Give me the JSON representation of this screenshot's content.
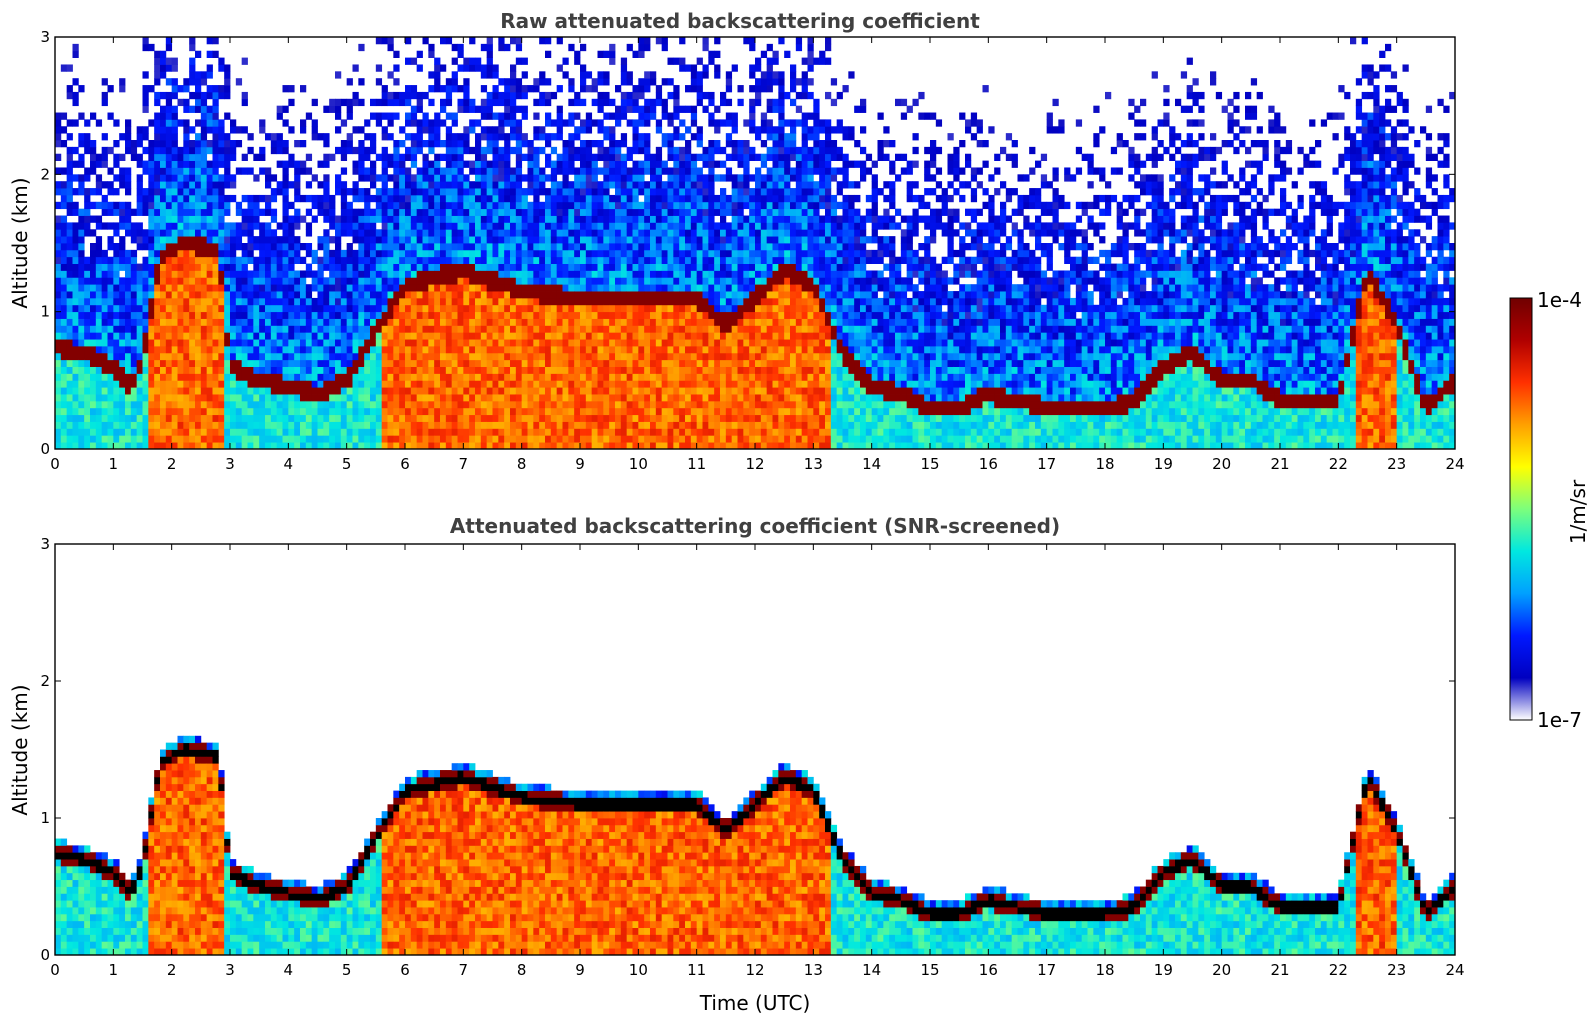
{
  "colormap": [
    "#ffffff",
    "#0000c0",
    "#0018ff",
    "#00a0ff",
    "#00e8e0",
    "#7cff7c",
    "#ffff00",
    "#ffa000",
    "#ff3000",
    "#b00000",
    "#700000"
  ],
  "chart_data": [
    {
      "id": "panel-1",
      "type": "heatmap",
      "title": "Raw attenuated backscattering coefficient",
      "xlabel": "",
      "ylabel": "Altitude (km)",
      "xlim": [
        0,
        24
      ],
      "ylim": [
        0,
        3
      ],
      "xticks": [
        "0",
        "1",
        "2",
        "3",
        "4",
        "5",
        "6",
        "7",
        "8",
        "9",
        "10",
        "11",
        "12",
        "13",
        "14",
        "15",
        "16",
        "17",
        "18",
        "19",
        "20",
        "21",
        "22",
        "23",
        "24"
      ],
      "yticks": [
        "0",
        "1",
        "2",
        "3"
      ],
      "screened": false,
      "cloud_base_km": [
        [
          0.0,
          0.75
        ],
        [
          0.5,
          0.7
        ],
        [
          1.0,
          0.6
        ],
        [
          1.3,
          0.45
        ],
        [
          1.5,
          0.65
        ],
        [
          1.8,
          1.4
        ],
        [
          2.2,
          1.5
        ],
        [
          2.8,
          1.45
        ],
        [
          3.0,
          0.6
        ],
        [
          3.5,
          0.5
        ],
        [
          4.0,
          0.45
        ],
        [
          4.5,
          0.4
        ],
        [
          5.0,
          0.5
        ],
        [
          6.0,
          1.2
        ],
        [
          7.0,
          1.3
        ],
        [
          8.0,
          1.15
        ],
        [
          9.0,
          1.1
        ],
        [
          10.0,
          1.1
        ],
        [
          11.0,
          1.1
        ],
        [
          11.5,
          0.9
        ],
        [
          12.0,
          1.1
        ],
        [
          12.5,
          1.3
        ],
        [
          13.0,
          1.2
        ],
        [
          13.5,
          0.7
        ],
        [
          14.0,
          0.45
        ],
        [
          14.5,
          0.4
        ],
        [
          15.0,
          0.3
        ],
        [
          15.5,
          0.3
        ],
        [
          16.0,
          0.4
        ],
        [
          16.5,
          0.35
        ],
        [
          17.0,
          0.3
        ],
        [
          18.0,
          0.3
        ],
        [
          18.5,
          0.35
        ],
        [
          19.0,
          0.6
        ],
        [
          19.5,
          0.7
        ],
        [
          20.0,
          0.5
        ],
        [
          20.5,
          0.5
        ],
        [
          21.0,
          0.35
        ],
        [
          22.0,
          0.35
        ],
        [
          22.5,
          1.3
        ],
        [
          23.0,
          0.9
        ],
        [
          23.5,
          0.3
        ],
        [
          24.0,
          0.5
        ]
      ]
    },
    {
      "id": "panel-2",
      "type": "heatmap",
      "title": "Attenuated backscattering coefficient (SNR-screened)",
      "xlabel": "Time (UTC)",
      "ylabel": "Altitude (km)",
      "xlim": [
        0,
        24
      ],
      "ylim": [
        0,
        3
      ],
      "xticks": [
        "0",
        "1",
        "2",
        "3",
        "4",
        "5",
        "6",
        "7",
        "8",
        "9",
        "10",
        "11",
        "12",
        "13",
        "14",
        "15",
        "16",
        "17",
        "18",
        "19",
        "20",
        "21",
        "22",
        "23",
        "24"
      ],
      "yticks": [
        "0",
        "1",
        "2",
        "3"
      ],
      "screened": true,
      "cloud_base_km": [
        [
          0.0,
          0.75
        ],
        [
          0.5,
          0.7
        ],
        [
          1.0,
          0.6
        ],
        [
          1.3,
          0.45
        ],
        [
          1.5,
          0.65
        ],
        [
          1.8,
          1.4
        ],
        [
          2.2,
          1.5
        ],
        [
          2.8,
          1.45
        ],
        [
          3.0,
          0.6
        ],
        [
          3.5,
          0.5
        ],
        [
          4.0,
          0.45
        ],
        [
          4.5,
          0.4
        ],
        [
          5.0,
          0.5
        ],
        [
          6.0,
          1.2
        ],
        [
          7.0,
          1.3
        ],
        [
          8.0,
          1.15
        ],
        [
          9.0,
          1.1
        ],
        [
          10.0,
          1.1
        ],
        [
          11.0,
          1.1
        ],
        [
          11.5,
          0.9
        ],
        [
          12.0,
          1.1
        ],
        [
          12.5,
          1.3
        ],
        [
          13.0,
          1.2
        ],
        [
          13.5,
          0.7
        ],
        [
          14.0,
          0.45
        ],
        [
          14.5,
          0.4
        ],
        [
          15.0,
          0.3
        ],
        [
          15.5,
          0.3
        ],
        [
          16.0,
          0.4
        ],
        [
          16.5,
          0.35
        ],
        [
          17.0,
          0.3
        ],
        [
          18.0,
          0.3
        ],
        [
          18.5,
          0.35
        ],
        [
          19.0,
          0.6
        ],
        [
          19.5,
          0.7
        ],
        [
          20.0,
          0.5
        ],
        [
          20.5,
          0.5
        ],
        [
          21.0,
          0.35
        ],
        [
          22.0,
          0.35
        ],
        [
          22.5,
          1.3
        ],
        [
          23.0,
          0.9
        ],
        [
          23.5,
          0.3
        ],
        [
          24.0,
          0.5
        ]
      ]
    }
  ],
  "colorbar": {
    "label": "1/m/sr",
    "max_label": "1e-4",
    "min_label": "1e-7",
    "range": [
      1e-07,
      0.0001
    ],
    "scale": "log"
  }
}
